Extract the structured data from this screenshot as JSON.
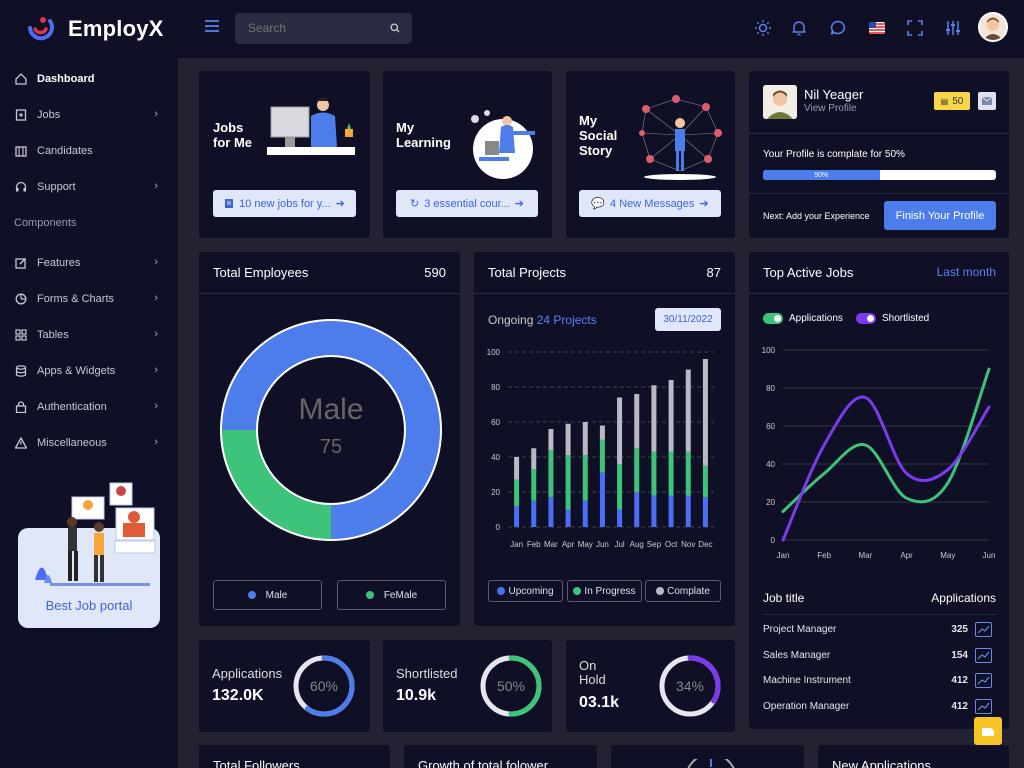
{
  "app": {
    "name": "EmployX"
  },
  "search": {
    "placeholder": "Search"
  },
  "sidebar": {
    "items": [
      {
        "label": "Dashboard",
        "icon": "home-icon",
        "active": true
      },
      {
        "label": "Jobs",
        "icon": "document-plus-icon",
        "chevron": true
      },
      {
        "label": "Candidates",
        "icon": "building-icon"
      },
      {
        "label": "Support",
        "icon": "headset-icon",
        "chevron": true
      }
    ],
    "section_label": "Components",
    "items2": [
      {
        "label": "Features",
        "icon": "edit-icon",
        "chevron": true
      },
      {
        "label": "Forms & Charts",
        "icon": "pie-chart-icon",
        "chevron": true
      },
      {
        "label": "Tables",
        "icon": "grid-icon",
        "chevron": true
      },
      {
        "label": "Apps & Widgets",
        "icon": "database-icon",
        "chevron": true
      },
      {
        "label": "Authentication",
        "icon": "lock-icon",
        "chevron": true
      },
      {
        "label": "Miscellaneous",
        "icon": "warning-icon",
        "chevron": true
      }
    ],
    "promo_label": "Best Job portal"
  },
  "cards_top": [
    {
      "title_line1": "Jobs",
      "title_line2": "for Me",
      "button": "10 new jobs for y...",
      "button_icon": "document-icon"
    },
    {
      "title_line1": "My",
      "title_line2": "Learning",
      "button": "3 essential cour...",
      "button_icon": "refresh-icon"
    },
    {
      "title_line1": "My",
      "title_line2": "Social",
      "title_line3": "Story",
      "button": "4 New Messages",
      "button_icon": "chat-icon"
    }
  ],
  "profile": {
    "name": "Nil Yeager",
    "link": "View Profile",
    "coins": "50",
    "progress_text": "Your Profile is complate for 50%",
    "progress_value": 0.5,
    "progress_label": "50%",
    "next_text": "Next: Add your Experience",
    "finish_button": "Finish Your Profile"
  },
  "employees": {
    "title": "Total Employees",
    "count": "590",
    "center_label": "Male",
    "center_value": "75",
    "legend": [
      "Male",
      "FeMale"
    ],
    "colors": {
      "male": "#4c7dea",
      "female": "#3ec47a"
    }
  },
  "projects": {
    "title": "Total Projects",
    "count": "87",
    "subtitle_prefix": "Ongoing",
    "subtitle_link": "24 Projects",
    "date": "30/11/2022",
    "legend": [
      "Upcoming",
      "In Progress",
      "Complate"
    ]
  },
  "top_jobs": {
    "title": "Top Active Jobs",
    "period": "Last month",
    "toggles": [
      "Applications",
      "Shortlisted"
    ],
    "table_header": [
      "Job title",
      "Applications"
    ],
    "rows": [
      {
        "title": "Project Manager",
        "count": "325"
      },
      {
        "title": "Sales Manager",
        "count": "154"
      },
      {
        "title": "Machine Instrument",
        "count": "412"
      },
      {
        "title": "Operation Manager",
        "count": "412"
      }
    ]
  },
  "stats": [
    {
      "label": "Applications",
      "value": "132.0K",
      "percent": "60%",
      "fraction": 0.6,
      "color": "#4c7dea"
    },
    {
      "label": "Shortlisted",
      "value": "10.9k",
      "percent": "50%",
      "fraction": 0.5,
      "color": "#3ec47a"
    },
    {
      "label_line1": "On",
      "label_line2": "Hold",
      "value": "03.1k",
      "percent": "34%",
      "fraction": 0.34,
      "color": "#7c3aed"
    }
  ],
  "bottom_titles": [
    "Total Followers",
    "Growth of total folower",
    "New Applications"
  ],
  "chart_data": [
    {
      "type": "pie",
      "title": "Total Employees",
      "labels": [
        "Male",
        "FeMale"
      ],
      "values": [
        75,
        25
      ]
    },
    {
      "type": "bar",
      "title": "Total Projects",
      "categories": [
        "Jan",
        "Feb",
        "Mar",
        "Apr",
        "May",
        "Jun",
        "Jul",
        "Aug",
        "Sep",
        "Oct",
        "Nov",
        "Dec"
      ],
      "series": [
        {
          "name": "Upcoming",
          "values": [
            12,
            15,
            17,
            10,
            15,
            31,
            10,
            20,
            18,
            18,
            18,
            17
          ]
        },
        {
          "name": "In Progress",
          "values": [
            15,
            18,
            27,
            31,
            26,
            19,
            26,
            25,
            25,
            25,
            25,
            18
          ]
        },
        {
          "name": "Complate",
          "values": [
            13,
            12,
            12,
            18,
            19,
            8,
            38,
            31,
            38,
            41,
            47,
            61
          ]
        }
      ],
      "ylim": [
        0,
        100
      ],
      "yticks": [
        0,
        20,
        40,
        60,
        80,
        100
      ],
      "grid": true
    },
    {
      "type": "line",
      "title": "Top Active Jobs",
      "x": [
        "Jan",
        "Feb",
        "Mar",
        "Apr",
        "May",
        "Jun"
      ],
      "series": [
        {
          "name": "Applications",
          "values": [
            15,
            35,
            50,
            22,
            30,
            90
          ],
          "color": "#3ec47a"
        },
        {
          "name": "Shortlisted",
          "values": [
            0,
            50,
            75,
            35,
            37,
            70
          ],
          "color": "#7c3aed"
        }
      ],
      "ylim": [
        0,
        100
      ],
      "yticks": [
        0,
        20,
        40,
        60,
        80,
        100
      ],
      "grid": true
    }
  ]
}
